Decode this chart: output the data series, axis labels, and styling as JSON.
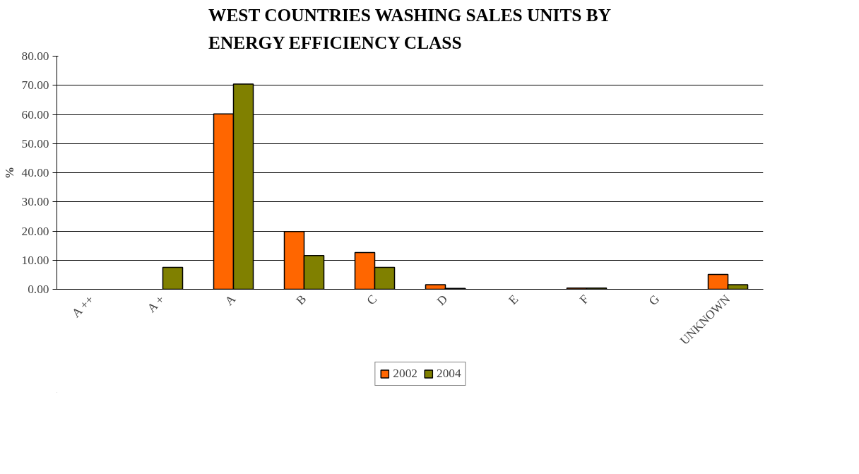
{
  "chart_data": {
    "type": "bar",
    "title": "WEST COUNTRIES WASHING SALES UNITS BY ENERGY EFFICIENCY CLASS",
    "ylabel": "%",
    "categories": [
      "A ++",
      "A +",
      "A",
      "B",
      "C",
      "D",
      "E",
      "F",
      "G",
      "UNKNOWN"
    ],
    "series": [
      {
        "name": "2002",
        "color": "#ff6600",
        "values": [
          0,
          0,
          60.2,
          19.8,
          12.6,
          1.6,
          0,
          0.4,
          0,
          5.1
        ]
      },
      {
        "name": "2004",
        "color": "#808000",
        "values": [
          0,
          7.5,
          70.4,
          11.6,
          7.5,
          0.3,
          0,
          0.4,
          0,
          1.6
        ]
      }
    ],
    "ylim": [
      0,
      80
    ],
    "yticks": [
      {
        "value": 0,
        "label": "0.00"
      },
      {
        "value": 10,
        "label": "10.00"
      },
      {
        "value": 20,
        "label": "20.00"
      },
      {
        "value": 30,
        "label": "30.00"
      },
      {
        "value": 40,
        "label": "40.00"
      },
      {
        "value": 50,
        "label": "50.00"
      },
      {
        "value": 60,
        "label": "60.00"
      },
      {
        "value": 70,
        "label": "70.00"
      },
      {
        "value": 80,
        "label": "80.00"
      }
    ],
    "grid": "y",
    "legend": "bottom"
  }
}
